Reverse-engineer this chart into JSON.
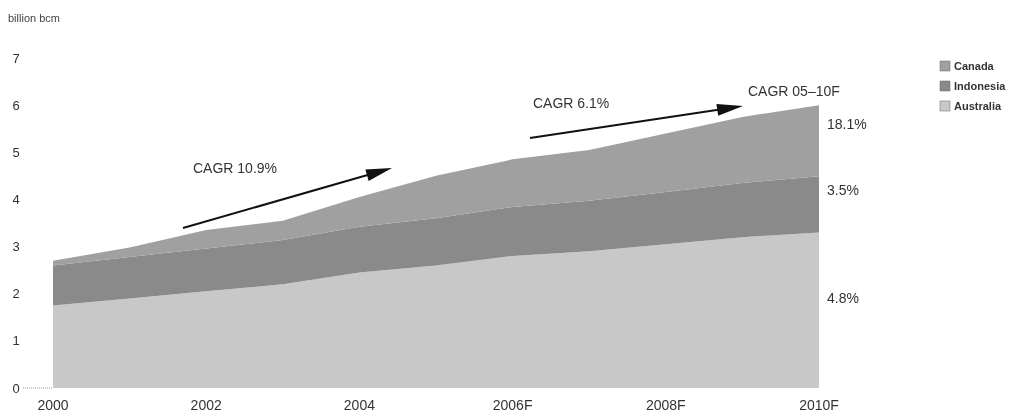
{
  "chart_data": {
    "type": "area",
    "stacked": true,
    "ylabel": "billion bcm",
    "categories": [
      "2000",
      null,
      "2002",
      null,
      "2004",
      null,
      "2006F",
      null,
      "2008F",
      null,
      "2010F"
    ],
    "series": [
      {
        "name": "Australia",
        "color": "#c8c8c8",
        "values": [
          1.75,
          1.9,
          2.05,
          2.2,
          2.45,
          2.6,
          2.8,
          2.9,
          3.05,
          3.2,
          3.3
        ]
      },
      {
        "name": "Indonesia",
        "color": "#8a8a8a",
        "values": [
          0.85,
          0.88,
          0.91,
          0.94,
          0.97,
          1.0,
          1.04,
          1.07,
          1.11,
          1.15,
          1.19
        ]
      },
      {
        "name": "Canada",
        "color": "#a0a0a0",
        "values": [
          0.1,
          0.2,
          0.39,
          0.41,
          0.63,
          0.9,
          1.01,
          1.08,
          1.24,
          1.4,
          1.51
        ]
      }
    ],
    "ylim": [
      0,
      7
    ],
    "yticks": [
      0,
      1,
      2,
      3,
      4,
      5,
      6,
      7
    ],
    "legend": "top right",
    "grid": false,
    "annotations": [
      "CAGR 10.9%",
      "CAGR 6.1%",
      "CAGR 05–10F",
      {
        "text": "18.1%",
        "x": "2010F",
        "y": 5.6
      },
      {
        "text": "3.5%",
        "x": "2010F",
        "y": 4.2
      },
      {
        "text": "4.8%",
        "x": "2010F",
        "y": 1.9
      }
    ]
  }
}
